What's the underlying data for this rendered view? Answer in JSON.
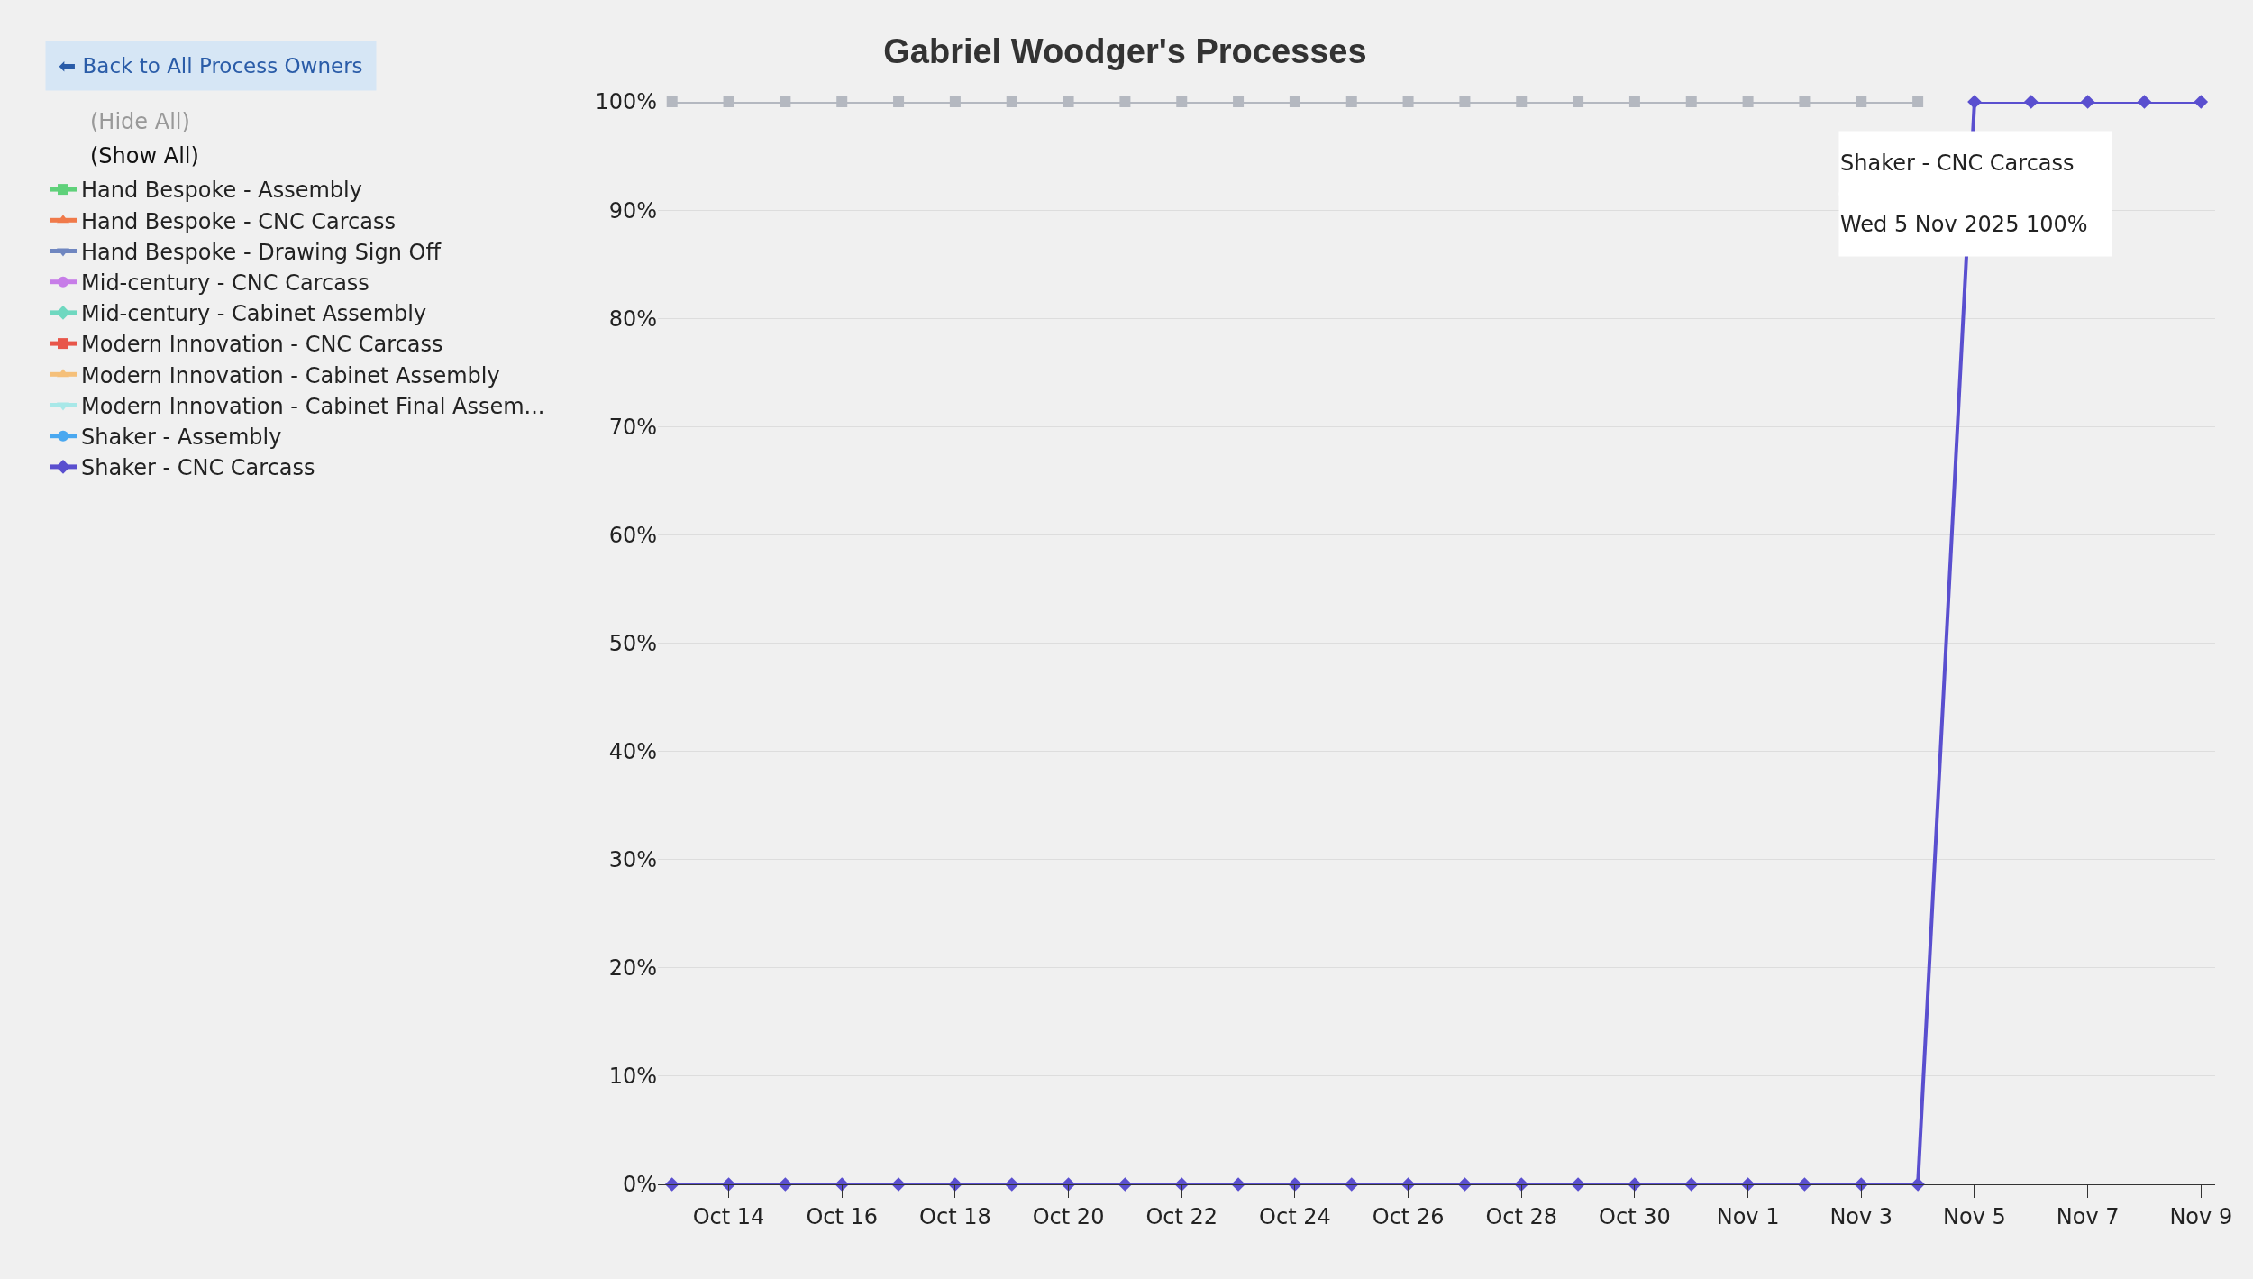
{
  "chart_data": {
    "type": "line",
    "title": "Gabriel Woodger's Processes",
    "x": [
      "2025-10-13",
      "2025-10-14",
      "2025-10-15",
      "2025-10-16",
      "2025-10-17",
      "2025-10-18",
      "2025-10-19",
      "2025-10-20",
      "2025-10-21",
      "2025-10-22",
      "2025-10-23",
      "2025-10-24",
      "2025-10-25",
      "2025-10-26",
      "2025-10-27",
      "2025-10-28",
      "2025-10-29",
      "2025-10-30",
      "2025-10-31",
      "2025-11-01",
      "2025-11-02",
      "2025-11-03",
      "2025-11-04",
      "2025-11-05",
      "2025-11-06",
      "2025-11-07",
      "2025-11-08",
      "2025-11-09"
    ],
    "series": [
      {
        "name": "Hand Bespoke - Assembly",
        "color": "#5fd17a",
        "marker": "square",
        "values": [
          null,
          null,
          null,
          null,
          null,
          null,
          null,
          null,
          null,
          null,
          null,
          null,
          null,
          null,
          null,
          null,
          null,
          null,
          null,
          null,
          null,
          null,
          null,
          null,
          null,
          null,
          null,
          null
        ]
      },
      {
        "name": "Hand Bespoke - CNC Carcass",
        "color": "#f07a4a",
        "marker": "triangle",
        "values": [
          null,
          null,
          null,
          null,
          null,
          null,
          null,
          null,
          null,
          null,
          null,
          null,
          null,
          null,
          null,
          null,
          null,
          null,
          null,
          null,
          null,
          null,
          null,
          null,
          null,
          null,
          null,
          null
        ]
      },
      {
        "name": "Hand Bespoke - Drawing Sign Off",
        "color": "#6f86c0",
        "marker": "triangle-down",
        "values": [
          null,
          null,
          null,
          null,
          null,
          null,
          null,
          null,
          null,
          null,
          null,
          null,
          null,
          null,
          null,
          null,
          null,
          null,
          null,
          null,
          null,
          null,
          null,
          null,
          null,
          null,
          null,
          null
        ]
      },
      {
        "name": "Mid-century - CNC Carcass",
        "color": "#c77de8",
        "marker": "circle",
        "values": [
          null,
          null,
          null,
          null,
          null,
          null,
          null,
          null,
          null,
          null,
          null,
          null,
          null,
          null,
          null,
          null,
          null,
          null,
          null,
          null,
          null,
          null,
          null,
          null,
          null,
          null,
          null,
          null
        ]
      },
      {
        "name": "Mid-century - Cabinet Assembly",
        "color": "#6fd8c0",
        "marker": "diamond",
        "values": [
          null,
          null,
          null,
          null,
          null,
          null,
          null,
          null,
          null,
          null,
          null,
          null,
          null,
          null,
          null,
          null,
          null,
          null,
          null,
          null,
          null,
          null,
          null,
          null,
          null,
          null,
          null,
          null
        ]
      },
      {
        "name": "Modern Innovation - CNC Carcass",
        "color": "#e8564a",
        "marker": "square",
        "values": [
          null,
          null,
          null,
          null,
          null,
          null,
          null,
          null,
          null,
          null,
          null,
          null,
          null,
          null,
          null,
          null,
          null,
          null,
          null,
          null,
          null,
          null,
          null,
          null,
          null,
          null,
          null,
          null
        ]
      },
      {
        "name": "Modern Innovation - Cabinet Assembly",
        "color": "#f5c07a",
        "marker": "triangle",
        "values": [
          null,
          null,
          null,
          null,
          null,
          null,
          null,
          null,
          null,
          null,
          null,
          null,
          null,
          null,
          null,
          null,
          null,
          null,
          null,
          null,
          null,
          null,
          null,
          null,
          null,
          null,
          null,
          null
        ]
      },
      {
        "name": "Modern Innovation - Cabinet Final Assem...",
        "color": "#a8e8e8",
        "marker": "triangle-down",
        "values": [
          null,
          null,
          null,
          null,
          null,
          null,
          null,
          null,
          null,
          null,
          null,
          null,
          null,
          null,
          null,
          null,
          null,
          null,
          null,
          null,
          null,
          null,
          null,
          null,
          null,
          null,
          null,
          null
        ]
      },
      {
        "name": "Shaker - Assembly",
        "color": "#4aa8f0",
        "marker": "circle",
        "values": [
          null,
          null,
          null,
          null,
          null,
          null,
          null,
          null,
          null,
          null,
          null,
          null,
          null,
          null,
          null,
          null,
          null,
          null,
          null,
          null,
          null,
          null,
          null,
          null,
          null,
          null,
          null,
          null
        ]
      },
      {
        "color": "#b4b8c0",
        "marker": "square",
        "values": [
          100,
          100,
          100,
          100,
          100,
          100,
          100,
          100,
          100,
          100,
          100,
          100,
          100,
          100,
          100,
          100,
          100,
          100,
          100,
          100,
          100,
          100,
          100,
          null,
          null,
          null,
          null,
          null
        ]
      },
      {
        "name": "Shaker - CNC Carcass",
        "color": "#5a4fcf",
        "marker": "diamond",
        "values": [
          0,
          0,
          0,
          0,
          0,
          0,
          0,
          0,
          0,
          0,
          0,
          0,
          0,
          0,
          0,
          0,
          0,
          0,
          0,
          0,
          0,
          0,
          0,
          100,
          100,
          100,
          100,
          100
        ]
      }
    ],
    "xlim": [
      "2025-10-12T18:00",
      "2025-11-09T06:00"
    ],
    "xticks": [
      {
        "value": "2025-10-14",
        "label": "Oct 14"
      },
      {
        "value": "2025-10-16",
        "label": "Oct 16"
      },
      {
        "value": "2025-10-18",
        "label": "Oct 18"
      },
      {
        "value": "2025-10-20",
        "label": "Oct 20"
      },
      {
        "value": "2025-10-22",
        "label": "Oct 22"
      },
      {
        "value": "2025-10-24",
        "label": "Oct 24"
      },
      {
        "value": "2025-10-26",
        "label": "Oct 26"
      },
      {
        "value": "2025-10-28",
        "label": "Oct 28"
      },
      {
        "value": "2025-10-30",
        "label": "Oct 30"
      },
      {
        "value": "2025-11-01",
        "label": "Nov 1"
      },
      {
        "value": "2025-11-03",
        "label": "Nov 3"
      },
      {
        "value": "2025-11-05",
        "label": "Nov 5"
      },
      {
        "value": "2025-11-07",
        "label": "Nov 7"
      },
      {
        "value": "2025-11-09",
        "label": "Nov 9"
      }
    ],
    "ylim": [
      0,
      100
    ],
    "yticks": [
      {
        "value": 0,
        "label": "0%"
      },
      {
        "value": 10,
        "label": "10%"
      },
      {
        "value": 20,
        "label": "20%"
      },
      {
        "value": 30,
        "label": "30%"
      },
      {
        "value": 40,
        "label": "40%"
      },
      {
        "value": 50,
        "label": "50%"
      },
      {
        "value": 60,
        "label": "60%"
      },
      {
        "value": 70,
        "label": "70%"
      },
      {
        "value": 80,
        "label": "80%"
      },
      {
        "value": 90,
        "label": "90%"
      },
      {
        "value": 100,
        "label": "100%"
      }
    ],
    "grid": "y",
    "legend": "top left",
    "line_style": "solid",
    "annotations": [
      "⬅ Back to All Process Owners",
      "(Hide All)",
      "(Show All)",
      "Shaker - CNC Carcass",
      "Wed 5 Nov 2025 100%"
    ]
  }
}
